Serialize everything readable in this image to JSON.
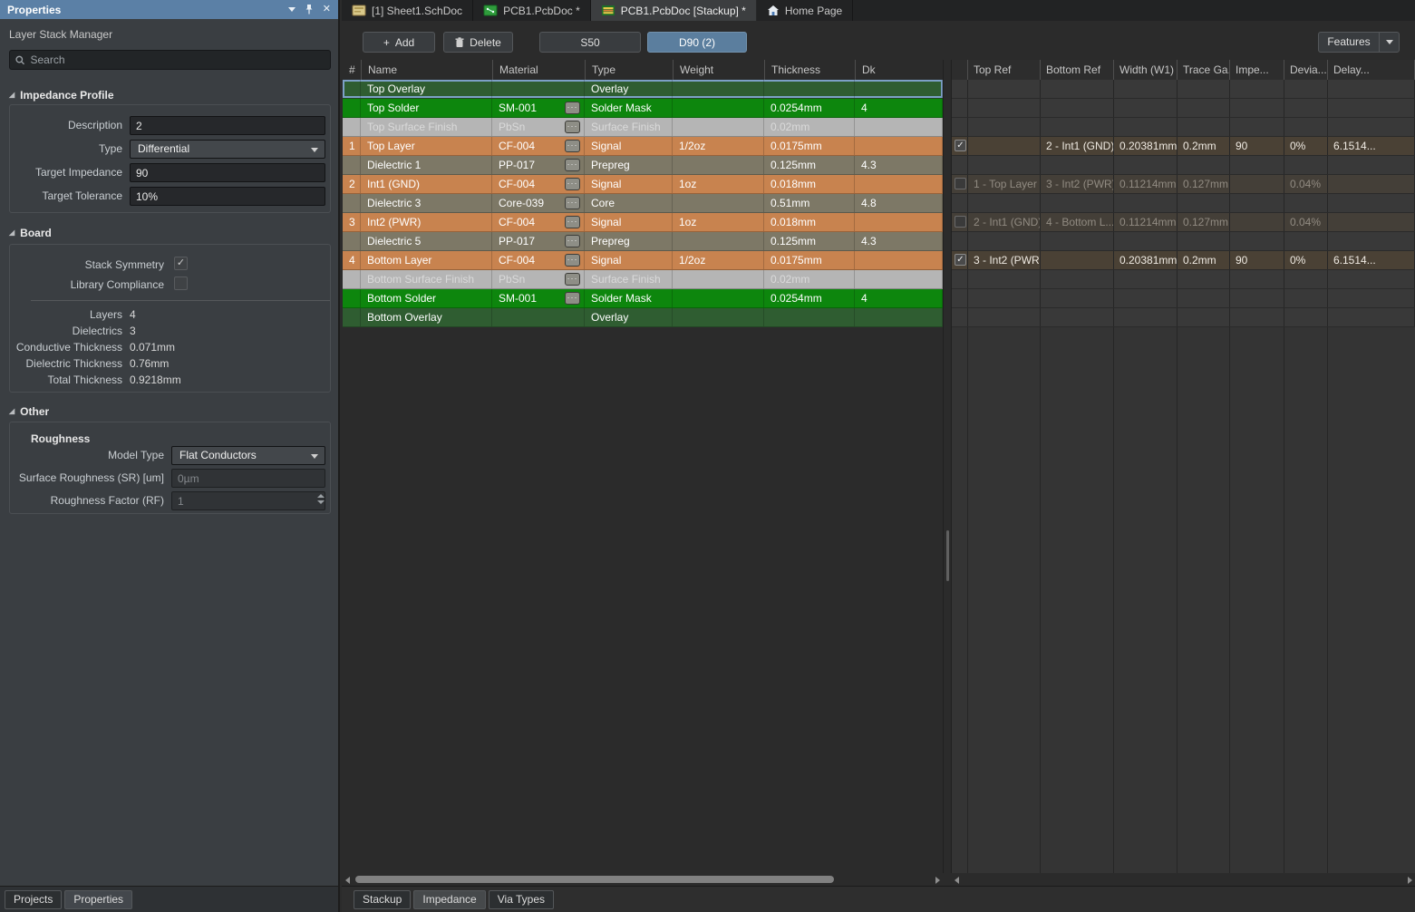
{
  "properties_panel": {
    "title": "Properties",
    "titlebar_icons": [
      "chevron-down-icon",
      "pin-icon",
      "close-icon"
    ],
    "subtitle": "Layer Stack Manager",
    "search_placeholder": "Search",
    "impedance_profile": {
      "section_label": "Impedance Profile",
      "description_label": "Description",
      "description_value": "2",
      "type_label": "Type",
      "type_value": "Differential",
      "target_impedance_label": "Target Impedance",
      "target_impedance_value": "90",
      "target_tolerance_label": "Target Tolerance",
      "target_tolerance_value": "10%"
    },
    "board": {
      "section_label": "Board",
      "stack_symmetry_label": "Stack Symmetry",
      "stack_symmetry_checked": true,
      "library_compliance_label": "Library Compliance",
      "library_compliance_checked": false,
      "stats": [
        {
          "label": "Layers",
          "value": "4"
        },
        {
          "label": "Dielectrics",
          "value": "3"
        },
        {
          "label": "Conductive Thickness",
          "value": "0.071mm"
        },
        {
          "label": "Dielectric Thickness",
          "value": "0.76mm"
        },
        {
          "label": "Total Thickness",
          "value": "0.9218mm"
        }
      ]
    },
    "other": {
      "section_label": "Other",
      "roughness_label": "Roughness",
      "model_type_label": "Model Type",
      "model_type_value": "Flat Conductors",
      "surface_roughness_label": "Surface Roughness (SR) [um]",
      "surface_roughness_value": "0µm",
      "roughness_factor_label": "Roughness Factor (RF)",
      "roughness_factor_value": "1"
    },
    "bottom_tabs": [
      {
        "label": "Projects",
        "active": false
      },
      {
        "label": "Properties",
        "active": true
      }
    ]
  },
  "document_tabs": [
    {
      "label": "[1] Sheet1.SchDoc",
      "icon": "schematic-doc-icon",
      "active": false
    },
    {
      "label": "PCB1.PcbDoc *",
      "icon": "pcb-doc-icon",
      "active": false
    },
    {
      "label": "PCB1.PcbDoc [Stackup] *",
      "icon": "stackup-doc-icon",
      "active": true
    },
    {
      "label": "Home Page",
      "icon": "home-icon",
      "active": false
    }
  ],
  "toolbar": {
    "add_label": "Add",
    "delete_label": "Delete",
    "profile_buttons": [
      {
        "label": "S50",
        "active": false
      },
      {
        "label": "D90 (2)",
        "active": true
      }
    ],
    "features_label": "Features"
  },
  "stack_table": {
    "columns": [
      "#",
      "Name",
      "Material",
      "Type",
      "Weight",
      "Thickness",
      "Dk"
    ],
    "rows": [
      {
        "num": "",
        "name": "Top Overlay",
        "material": "",
        "has_browse": false,
        "type": "Overlay",
        "weight": "",
        "thickness": "",
        "dk": "",
        "kind": "overlay",
        "selected": true,
        "dimmed": false
      },
      {
        "num": "",
        "name": "Top Solder",
        "material": "SM-001",
        "has_browse": true,
        "type": "Solder Mask",
        "weight": "",
        "thickness": "0.0254mm",
        "dk": "4",
        "kind": "solder",
        "selected": false,
        "dimmed": false
      },
      {
        "num": "",
        "name": "Top Surface Finish",
        "material": "PbSn",
        "has_browse": true,
        "type": "Surface Finish",
        "weight": "",
        "thickness": "0.02mm",
        "dk": "",
        "kind": "surface",
        "selected": false,
        "dimmed": true
      },
      {
        "num": "1",
        "name": "Top Layer",
        "material": "CF-004",
        "has_browse": true,
        "type": "Signal",
        "weight": "1/2oz",
        "thickness": "0.0175mm",
        "dk": "",
        "kind": "signal",
        "selected": false,
        "dimmed": false
      },
      {
        "num": "",
        "name": "Dielectric 1",
        "material": "PP-017",
        "has_browse": true,
        "type": "Prepreg",
        "weight": "",
        "thickness": "0.125mm",
        "dk": "4.3",
        "kind": "dielectric",
        "selected": false,
        "dimmed": false
      },
      {
        "num": "2",
        "name": "Int1 (GND)",
        "material": "CF-004",
        "has_browse": true,
        "type": "Signal",
        "weight": "1oz",
        "thickness": "0.018mm",
        "dk": "",
        "kind": "signal",
        "selected": false,
        "dimmed": false
      },
      {
        "num": "",
        "name": "Dielectric 3",
        "material": "Core-039",
        "has_browse": true,
        "type": "Core",
        "weight": "",
        "thickness": "0.51mm",
        "dk": "4.8",
        "kind": "dielectric",
        "selected": false,
        "dimmed": false
      },
      {
        "num": "3",
        "name": "Int2 (PWR)",
        "material": "CF-004",
        "has_browse": true,
        "type": "Signal",
        "weight": "1oz",
        "thickness": "0.018mm",
        "dk": "",
        "kind": "signal",
        "selected": false,
        "dimmed": false
      },
      {
        "num": "",
        "name": "Dielectric 5",
        "material": "PP-017",
        "has_browse": true,
        "type": "Prepreg",
        "weight": "",
        "thickness": "0.125mm",
        "dk": "4.3",
        "kind": "dielectric",
        "selected": false,
        "dimmed": false
      },
      {
        "num": "4",
        "name": "Bottom Layer",
        "material": "CF-004",
        "has_browse": true,
        "type": "Signal",
        "weight": "1/2oz",
        "thickness": "0.0175mm",
        "dk": "",
        "kind": "signal",
        "selected": false,
        "dimmed": false
      },
      {
        "num": "",
        "name": "Bottom Surface Finish",
        "material": "PbSn",
        "has_browse": true,
        "type": "Surface Finish",
        "weight": "",
        "thickness": "0.02mm",
        "dk": "",
        "kind": "surface",
        "selected": false,
        "dimmed": true
      },
      {
        "num": "",
        "name": "Bottom Solder",
        "material": "SM-001",
        "has_browse": true,
        "type": "Solder Mask",
        "weight": "",
        "thickness": "0.0254mm",
        "dk": "4",
        "kind": "solder",
        "selected": false,
        "dimmed": false
      },
      {
        "num": "",
        "name": "Bottom Overlay",
        "material": "",
        "has_browse": false,
        "type": "Overlay",
        "weight": "",
        "thickness": "",
        "dk": "",
        "kind": "overlay",
        "selected": false,
        "dimmed": false
      }
    ]
  },
  "impedance_table": {
    "columns": [
      "",
      "Top Ref",
      "Bottom Ref",
      "Width (W1)",
      "Trace Ga...",
      "Impe...",
      "Devia...",
      "Delay..."
    ],
    "rows": [
      {
        "row_index": 3,
        "checked": true,
        "dimmed": false,
        "top_ref": "",
        "bottom_ref": "2 - Int1 (GND)",
        "width": "0.20381mm",
        "trace_gap": "0.2mm",
        "impedance": "90",
        "deviation": "0%",
        "delay": "6.1514..."
      },
      {
        "row_index": 5,
        "checked": false,
        "dimmed": true,
        "top_ref": "1 - Top Layer",
        "bottom_ref": "3 - Int2 (PWR)",
        "width": "0.11214mm",
        "trace_gap": "0.127mm",
        "impedance": "",
        "deviation": "0.04%",
        "delay": ""
      },
      {
        "row_index": 7,
        "checked": false,
        "dimmed": true,
        "top_ref": "2 - Int1 (GND)",
        "bottom_ref": "4 - Bottom L...",
        "width": "0.11214mm",
        "trace_gap": "0.127mm",
        "impedance": "",
        "deviation": "0.04%",
        "delay": ""
      },
      {
        "row_index": 9,
        "checked": true,
        "dimmed": false,
        "top_ref": "3 - Int2 (PWR)",
        "bottom_ref": "",
        "width": "0.20381mm",
        "trace_gap": "0.2mm",
        "impedance": "90",
        "deviation": "0%",
        "delay": "6.1514..."
      }
    ]
  },
  "view_tabs": [
    {
      "label": "Stackup",
      "active": false
    },
    {
      "label": "Impedance",
      "active": true
    },
    {
      "label": "Via Types",
      "active": false
    }
  ],
  "colors": {
    "accent_blue": "#5b80a6",
    "row_overlay": "#2f5d31",
    "row_solder": "#0d860d",
    "row_surface": "#b5b5b5",
    "row_signal": "#c8834f",
    "row_dielectric": "#7d7866",
    "selected_row_outline": "#7da0c6",
    "impedance_row": "#4a4135",
    "impedance_row_dimmed": "#443f38"
  }
}
